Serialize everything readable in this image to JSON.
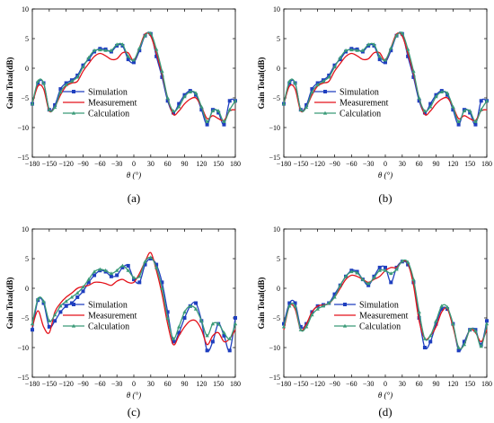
{
  "colors": {
    "simulation": "#1f3fbf",
    "measurement": "#e4121a",
    "calculation": "#3a9a78"
  },
  "chart_data": [
    {
      "panel": "(a)",
      "type": "line",
      "xlabel": "θ (°)",
      "ylabel": "Gain Total(dB)",
      "xlim": [
        -180,
        180
      ],
      "ylim": [
        -15,
        10
      ],
      "xticks": [
        -180,
        -150,
        -120,
        -90,
        -60,
        -30,
        0,
        30,
        60,
        90,
        120,
        150,
        180
      ],
      "yticks": [
        -15,
        -10,
        -5,
        0,
        5,
        10
      ],
      "legend": "center-left",
      "series": [
        {
          "name": "Simulation",
          "color": "#1f3fbf",
          "marker": "square",
          "x": [
            -180,
            -170,
            -160,
            -150,
            -140,
            -130,
            -120,
            -110,
            -100,
            -90,
            -80,
            -70,
            -60,
            -50,
            -40,
            -30,
            -20,
            -10,
            0,
            10,
            20,
            30,
            40,
            50,
            60,
            70,
            80,
            90,
            100,
            110,
            120,
            130,
            140,
            150,
            160,
            170,
            180
          ],
          "y": [
            -6,
            -2.5,
            -2.5,
            -7,
            -6.2,
            -3.5,
            -2.5,
            -2,
            -1.2,
            0.5,
            1.5,
            2.8,
            3.3,
            3.2,
            2.8,
            3.8,
            3.8,
            1.5,
            1,
            3,
            5.5,
            5.8,
            2,
            -1.5,
            -5.5,
            -7.5,
            -6,
            -4.5,
            -3.8,
            -4.5,
            -7,
            -9.5,
            -7,
            -7.5,
            -9.5,
            -5.5,
            -5.5
          ]
        },
        {
          "name": "Measurement",
          "color": "#e4121a",
          "marker": "none",
          "x": [
            -180,
            -170,
            -160,
            -150,
            -140,
            -130,
            -120,
            -110,
            -100,
            -90,
            -80,
            -70,
            -60,
            -50,
            -40,
            -30,
            -20,
            -10,
            0,
            10,
            20,
            30,
            40,
            50,
            60,
            70,
            80,
            90,
            100,
            110,
            120,
            130,
            140,
            150,
            160,
            170,
            180
          ],
          "y": [
            -6,
            -3,
            -3.5,
            -7.2,
            -6.5,
            -4.5,
            -3,
            -2.5,
            -2.2,
            -0.5,
            0.8,
            2,
            2.5,
            2.1,
            1.5,
            1.6,
            2.6,
            2.6,
            1.3,
            3.5,
            5.8,
            5.4,
            2.5,
            -1,
            -5,
            -7.8,
            -7.2,
            -6,
            -5.2,
            -5,
            -6.5,
            -8.5,
            -8,
            -8.5,
            -8.8,
            -7.2,
            -7
          ]
        },
        {
          "name": "Calculation",
          "color": "#3a9a78",
          "marker": "triangle",
          "x": [
            -180,
            -170,
            -160,
            -150,
            -140,
            -130,
            -120,
            -110,
            -100,
            -90,
            -80,
            -70,
            -60,
            -50,
            -40,
            -30,
            -20,
            -10,
            0,
            10,
            20,
            30,
            40,
            50,
            60,
            70,
            80,
            90,
            100,
            110,
            120,
            130,
            140,
            150,
            160,
            170,
            180
          ],
          "y": [
            -6,
            -2.2,
            -2.5,
            -7,
            -6.6,
            -4,
            -2.8,
            -2.2,
            -1.5,
            0.2,
            1.8,
            3,
            3.1,
            3,
            3,
            4,
            4,
            2,
            1.4,
            3.4,
            5.5,
            5.9,
            3.2,
            -0.5,
            -5,
            -7.2,
            -6.5,
            -4.8,
            -4,
            -4.2,
            -6.5,
            -9,
            -7.2,
            -7.2,
            -9,
            -7,
            -5.5
          ]
        }
      ]
    },
    {
      "panel": "(b)",
      "type": "line",
      "xlabel": "θ (°)",
      "ylabel": "Gain Total(dB)",
      "xlim": [
        -180,
        180
      ],
      "ylim": [
        -15,
        10
      ],
      "xticks": [
        -180,
        -150,
        -120,
        -90,
        -60,
        -30,
        0,
        30,
        60,
        90,
        120,
        150,
        180
      ],
      "yticks": [
        -15,
        -10,
        -5,
        0,
        5,
        10
      ],
      "legend": "center-left",
      "series": [
        {
          "name": "Simulation",
          "color": "#1f3fbf",
          "marker": "square",
          "x": [
            -180,
            -170,
            -160,
            -150,
            -140,
            -130,
            -120,
            -110,
            -100,
            -90,
            -80,
            -70,
            -60,
            -50,
            -40,
            -30,
            -20,
            -10,
            0,
            10,
            20,
            30,
            40,
            50,
            60,
            70,
            80,
            90,
            100,
            110,
            120,
            130,
            140,
            150,
            160,
            170,
            180
          ],
          "y": [
            -6,
            -2.5,
            -2.5,
            -7,
            -6.2,
            -3.5,
            -2.5,
            -2,
            -1.2,
            0.5,
            1.5,
            2.8,
            3.3,
            3.2,
            2.8,
            3.8,
            3.8,
            1.5,
            1,
            3,
            5.5,
            5.8,
            2,
            -1.5,
            -5.5,
            -7.5,
            -6,
            -4.5,
            -3.8,
            -4.5,
            -7,
            -9.5,
            -7,
            -7.5,
            -9.5,
            -5.5,
            -5.5
          ]
        },
        {
          "name": "Measurement",
          "color": "#e4121a",
          "marker": "none",
          "x": [
            -180,
            -170,
            -160,
            -150,
            -140,
            -130,
            -120,
            -110,
            -100,
            -90,
            -80,
            -70,
            -60,
            -50,
            -40,
            -30,
            -20,
            -10,
            0,
            10,
            20,
            30,
            40,
            50,
            60,
            70,
            80,
            90,
            100,
            110,
            120,
            130,
            140,
            150,
            160,
            170,
            180
          ],
          "y": [
            -6,
            -3,
            -3.5,
            -7.2,
            -6.5,
            -4.5,
            -3,
            -2.5,
            -2.2,
            -0.5,
            0.8,
            2,
            2.5,
            2.1,
            1.5,
            1.6,
            2.6,
            2.6,
            1.3,
            3.5,
            5.8,
            5.4,
            2.5,
            -1,
            -5,
            -7.8,
            -7.2,
            -6,
            -5.2,
            -5,
            -6.5,
            -8.5,
            -8,
            -8.5,
            -8.8,
            -7.2,
            -7
          ]
        },
        {
          "name": "Calculation",
          "color": "#3a9a78",
          "marker": "triangle",
          "x": [
            -180,
            -170,
            -160,
            -150,
            -140,
            -130,
            -120,
            -110,
            -100,
            -90,
            -80,
            -70,
            -60,
            -50,
            -40,
            -30,
            -20,
            -10,
            0,
            10,
            20,
            30,
            40,
            50,
            60,
            70,
            80,
            90,
            100,
            110,
            120,
            130,
            140,
            150,
            160,
            170,
            180
          ],
          "y": [
            -6,
            -2.2,
            -2.5,
            -7,
            -6.6,
            -4,
            -2.8,
            -2.2,
            -1.5,
            0.2,
            1.8,
            3,
            3.1,
            3,
            3,
            4,
            4,
            2,
            1.4,
            3.4,
            5.5,
            5.9,
            3.2,
            -0.5,
            -5,
            -7.2,
            -6.5,
            -4.8,
            -4,
            -4.2,
            -6.5,
            -9,
            -7.2,
            -7.2,
            -9,
            -7,
            -5.5
          ]
        }
      ]
    },
    {
      "panel": "(c)",
      "type": "line",
      "xlabel": "θ (°)",
      "ylabel": "Gain Total(dB)",
      "xlim": [
        -180,
        180
      ],
      "ylim": [
        -15,
        10
      ],
      "xticks": [
        -180,
        -150,
        -120,
        -90,
        -60,
        -30,
        0,
        30,
        60,
        90,
        120,
        150,
        180
      ],
      "yticks": [
        -15,
        -10,
        -5,
        0,
        5,
        10
      ],
      "legend": "lower-center",
      "series": [
        {
          "name": "Simulation",
          "color": "#1f3fbf",
          "marker": "square",
          "x": [
            -180,
            -170,
            -160,
            -150,
            -140,
            -130,
            -120,
            -110,
            -100,
            -90,
            -80,
            -70,
            -60,
            -50,
            -40,
            -30,
            -20,
            -10,
            0,
            10,
            20,
            30,
            40,
            50,
            60,
            70,
            80,
            90,
            100,
            110,
            120,
            130,
            140,
            150,
            160,
            170,
            180
          ],
          "y": [
            -7,
            -2,
            -2.5,
            -6.5,
            -5.5,
            -4,
            -3,
            -2.5,
            -1.5,
            -0.5,
            1,
            2.2,
            3,
            2.8,
            2,
            2.2,
            3.5,
            3.8,
            1.5,
            1,
            4,
            5,
            4,
            1,
            -4,
            -9,
            -7.5,
            -5,
            -3,
            -2.5,
            -5.5,
            -10.5,
            -9,
            -6,
            -8,
            -10.5,
            -5
          ]
        },
        {
          "name": "Measurement",
          "color": "#e4121a",
          "marker": "none",
          "x": [
            -180,
            -170,
            -160,
            -150,
            -140,
            -130,
            -120,
            -110,
            -100,
            -90,
            -80,
            -70,
            -60,
            -50,
            -40,
            -30,
            -20,
            -10,
            0,
            10,
            20,
            30,
            40,
            50,
            60,
            70,
            80,
            90,
            100,
            110,
            120,
            130,
            140,
            150,
            160,
            170,
            180
          ],
          "y": [
            -6.5,
            -3.8,
            -6.5,
            -7.5,
            -4,
            -2.5,
            -1.5,
            -0.8,
            0,
            0.3,
            0.5,
            1,
            1,
            0.8,
            0.5,
            1.2,
            1.5,
            1,
            1,
            2.5,
            4.5,
            6,
            3,
            -1,
            -6,
            -9.5,
            -8,
            -6.5,
            -5.5,
            -5.5,
            -7,
            -9.5,
            -8,
            -7.5,
            -9,
            -8.5,
            -7
          ]
        },
        {
          "name": "Calculation",
          "color": "#3a9a78",
          "marker": "triangle",
          "x": [
            -180,
            -170,
            -160,
            -150,
            -140,
            -130,
            -120,
            -110,
            -100,
            -90,
            -80,
            -70,
            -60,
            -50,
            -40,
            -30,
            -20,
            -10,
            0,
            10,
            20,
            30,
            40,
            50,
            60,
            70,
            80,
            90,
            100,
            110,
            120,
            130,
            140,
            150,
            160,
            170,
            180
          ],
          "y": [
            -6,
            -1.8,
            -2.2,
            -5.5,
            -4.5,
            -3,
            -2.2,
            -1.5,
            -0.8,
            0.2,
            1.5,
            2.8,
            3.2,
            3,
            2.5,
            3,
            3.8,
            3,
            1.8,
            2,
            4.5,
            5.2,
            3.5,
            0,
            -5,
            -8.5,
            -6.5,
            -4,
            -3,
            -3.5,
            -5.5,
            -8,
            -6,
            -6,
            -7.5,
            -8.5,
            -6
          ]
        }
      ]
    },
    {
      "panel": "(d)",
      "type": "line",
      "xlabel": "θ (°)",
      "ylabel": "Gain Total(dB)",
      "xlim": [
        -180,
        180
      ],
      "ylim": [
        -15,
        10
      ],
      "xticks": [
        -180,
        -150,
        -120,
        -90,
        -60,
        -30,
        0,
        30,
        60,
        90,
        120,
        150,
        180
      ],
      "yticks": [
        -15,
        -10,
        -5,
        0,
        5,
        10
      ],
      "legend": "lower-center",
      "series": [
        {
          "name": "Simulation",
          "color": "#1f3fbf",
          "marker": "square",
          "x": [
            -180,
            -170,
            -160,
            -150,
            -140,
            -130,
            -120,
            -110,
            -100,
            -90,
            -80,
            -70,
            -60,
            -50,
            -40,
            -30,
            -20,
            -10,
            0,
            10,
            20,
            30,
            40,
            50,
            60,
            70,
            80,
            90,
            100,
            110,
            120,
            130,
            140,
            150,
            160,
            170,
            180
          ],
          "y": [
            -6,
            -2.5,
            -2.5,
            -6.5,
            -6,
            -4,
            -3,
            -2.8,
            -2.5,
            -1,
            0.5,
            2,
            3,
            2.8,
            1.5,
            0.5,
            2,
            3.5,
            3.5,
            1,
            3.5,
            4.5,
            4,
            1,
            -5,
            -10,
            -9,
            -6,
            -3.5,
            -3.5,
            -6,
            -10.5,
            -9,
            -7,
            -7,
            -9.5,
            -5.5
          ]
        },
        {
          "name": "Measurement",
          "color": "#e4121a",
          "marker": "none",
          "x": [
            -180,
            -170,
            -160,
            -150,
            -140,
            -130,
            -120,
            -110,
            -100,
            -90,
            -80,
            -70,
            -60,
            -50,
            -40,
            -30,
            -20,
            -10,
            0,
            10,
            20,
            30,
            40,
            50,
            60,
            70,
            80,
            90,
            100,
            110,
            120,
            130,
            140,
            150,
            160,
            170,
            180
          ],
          "y": [
            -7,
            -3,
            -3.5,
            -7,
            -6,
            -4,
            -3,
            -2.8,
            -2.6,
            -1.5,
            0,
            1.5,
            2.2,
            2,
            1.5,
            1,
            1.5,
            2,
            3,
            3.5,
            3.5,
            4.5,
            4.2,
            0.5,
            -5.5,
            -8.5,
            -8,
            -6.5,
            -4,
            -3.5,
            -6.5,
            -10,
            -9.5,
            -7,
            -7.5,
            -9,
            -7
          ]
        },
        {
          "name": "Calculation",
          "color": "#3a9a78",
          "marker": "triangle",
          "x": [
            -180,
            -170,
            -160,
            -150,
            -140,
            -130,
            -120,
            -110,
            -100,
            -90,
            -80,
            -70,
            -60,
            -50,
            -40,
            -30,
            -20,
            -10,
            0,
            10,
            20,
            30,
            40,
            50,
            60,
            70,
            80,
            90,
            100,
            110,
            120,
            130,
            140,
            150,
            160,
            170,
            180
          ],
          "y": [
            -6.5,
            -3,
            -3,
            -7,
            -6.5,
            -4.5,
            -3.5,
            -3,
            -2.5,
            -1.5,
            0.5,
            2,
            2.8,
            2.6,
            1.5,
            0.8,
            1.8,
            3,
            3,
            2.5,
            3.2,
            4.6,
            4.4,
            1.5,
            -4,
            -8.5,
            -8,
            -5.5,
            -3,
            -3.2,
            -6,
            -10,
            -9.5,
            -7,
            -7.2,
            -9.8,
            -6
          ]
        }
      ]
    }
  ]
}
